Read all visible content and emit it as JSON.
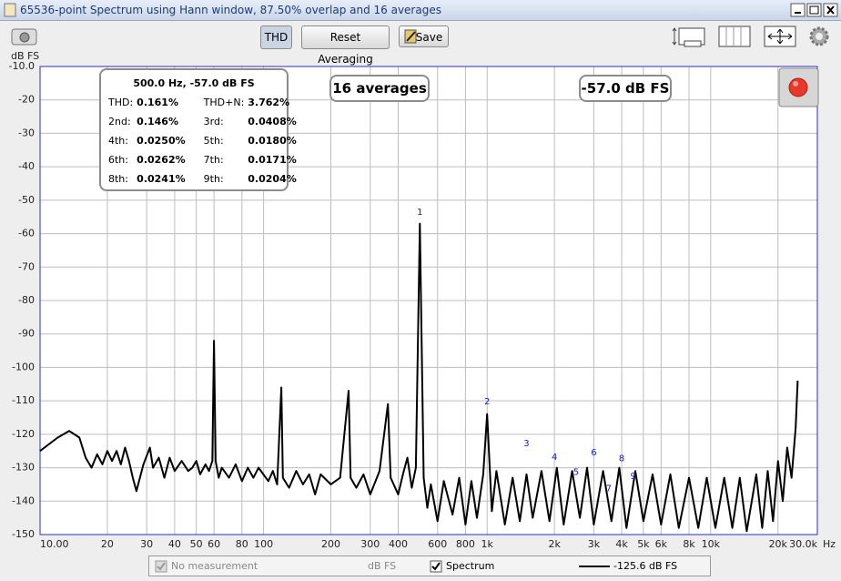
{
  "window": {
    "title": "65536-point Spectrum using Hann window, 87.50% overlap and 16 averages"
  },
  "toolbar": {
    "thd": "THD",
    "reset": "Reset Averaging",
    "save": "Save"
  },
  "info": {
    "header": "500.0 Hz, -57.0 dB FS",
    "rows": [
      [
        "THD:",
        "0.161%",
        "THD+N:",
        "3.762%"
      ],
      [
        "2nd:",
        "0.146%",
        "3rd:",
        "0.0408%"
      ],
      [
        "4th:",
        "0.0250%",
        "5th:",
        "0.0180%"
      ],
      [
        "6th:",
        "0.0262%",
        "7th:",
        "0.0171%"
      ],
      [
        "8th:",
        "0.0241%",
        "9th:",
        "0.0204%"
      ]
    ]
  },
  "averages": "16 averages",
  "level": "-57.0 dB FS",
  "legend": {
    "no_measurement": "No measurement",
    "units": "dB FS",
    "readout": "-125.6 dB FS"
  },
  "chart_data": {
    "type": "line",
    "xscale": "log",
    "grid": true,
    "ylabel": "dB FS",
    "xlabel": "Hz",
    "xlim": [
      10,
      30000
    ],
    "ylim": [
      -150,
      -10
    ],
    "xticks": [
      {
        "value": 10,
        "label": "10.00"
      },
      20,
      30,
      40,
      50,
      60,
      80,
      100,
      200,
      300,
      400,
      600,
      800,
      {
        "value": 1000,
        "label": "1k"
      },
      {
        "value": 2000,
        "label": "2k"
      },
      {
        "value": 3000,
        "label": "3k"
      },
      {
        "value": 4000,
        "label": "4k"
      },
      {
        "value": 5000,
        "label": "5k"
      },
      {
        "value": 6000,
        "label": "6k"
      },
      {
        "value": 8000,
        "label": "8k"
      },
      {
        "value": 10000,
        "label": "10k"
      },
      {
        "value": 20000,
        "label": "20k"
      },
      {
        "value": 30000,
        "label": "30.0k"
      }
    ],
    "yticks": [
      {
        "value": -10,
        "label": "-10.0"
      },
      -20,
      -30,
      -40,
      -50,
      -60,
      -70,
      -80,
      -90,
      -100,
      -110,
      -120,
      -130,
      -140,
      -150
    ],
    "x": [
      10,
      12,
      13.5,
      15,
      16,
      17,
      18,
      19,
      20,
      21,
      22,
      23,
      24,
      25,
      26,
      27,
      29,
      31,
      32,
      34,
      36,
      38,
      40,
      43,
      46,
      48,
      50,
      52,
      55,
      57,
      59,
      60,
      61,
      63,
      65,
      70,
      75,
      80,
      85,
      90,
      95,
      105,
      110,
      115,
      120,
      122,
      130,
      140,
      150,
      160,
      170,
      180,
      200,
      220,
      240,
      245,
      260,
      280,
      300,
      330,
      360,
      370,
      400,
      420,
      440,
      460,
      480,
      500,
      520,
      540,
      560,
      600,
      640,
      700,
      750,
      800,
      850,
      900,
      960,
      1000,
      1050,
      1100,
      1200,
      1300,
      1400,
      1500,
      1600,
      1750,
      1900,
      2050,
      2200,
      2400,
      2600,
      2800,
      3000,
      3300,
      3600,
      3900,
      4200,
      4600,
      5000,
      5500,
      6000,
      6600,
      7200,
      8000,
      8800,
      9600,
      10500,
      11500,
      12500,
      13500,
      14500,
      16000,
      17000,
      18000,
      19000,
      20000,
      21000,
      22000,
      23000,
      24000,
      24500
    ],
    "series": [
      {
        "name": "Spectrum",
        "color": "#000000",
        "values": [
          -125,
          -121,
          -119,
          -121,
          -127,
          -130,
          -126,
          -129,
          -125,
          -128,
          -125,
          -129,
          -124,
          -128,
          -133,
          -137,
          -129,
          -124,
          -130,
          -127,
          -133,
          -127,
          -131,
          -128,
          -131,
          -130,
          -128,
          -132,
          -129,
          -131,
          -128,
          -92,
          -128,
          -133,
          -130,
          -133,
          -129,
          -134,
          -130,
          -133,
          -130,
          -134,
          -131,
          -135,
          -106,
          -133,
          -136,
          -131,
          -135,
          -132,
          -138,
          -132,
          -135,
          -133,
          -107,
          -133,
          -136,
          -132,
          -138,
          -131,
          -111,
          -133,
          -138,
          -132,
          -127,
          -136,
          -130,
          -57,
          -133,
          -142,
          -135,
          -146,
          -134,
          -144,
          -133,
          -147,
          -134,
          -145,
          -132,
          -114,
          -143,
          -131,
          -147,
          -133,
          -146,
          -132,
          -145,
          -131,
          -146,
          -130,
          -147,
          -131,
          -145,
          -130,
          -147,
          -131,
          -146,
          -130,
          -148,
          -131,
          -146,
          -132,
          -147,
          -132,
          -148,
          -133,
          -148,
          -133,
          -148,
          -133,
          -148,
          -133,
          -149,
          -132,
          -148,
          -131,
          -146,
          -128,
          -140,
          -124,
          -133,
          -118,
          -104
        ]
      }
    ],
    "annotations": [
      {
        "text": "1",
        "x": 500,
        "y": -53.6
      },
      {
        "text": "2",
        "x": 1000,
        "y": -110.3
      },
      {
        "text": "3",
        "x": 1500,
        "y": -122.8
      },
      {
        "text": "4",
        "x": 2000,
        "y": -126.9
      },
      {
        "text": "5",
        "x": 2500,
        "y": -131.3
      },
      {
        "text": "6",
        "x": 3000,
        "y": -125.5
      },
      {
        "text": "7",
        "x": 3500,
        "y": -136.2
      },
      {
        "text": "8",
        "x": 4000,
        "y": -127.2
      },
      {
        "text": "9",
        "x": 4500,
        "y": -132.6
      }
    ],
    "annotation_color": "#1a1acc"
  }
}
